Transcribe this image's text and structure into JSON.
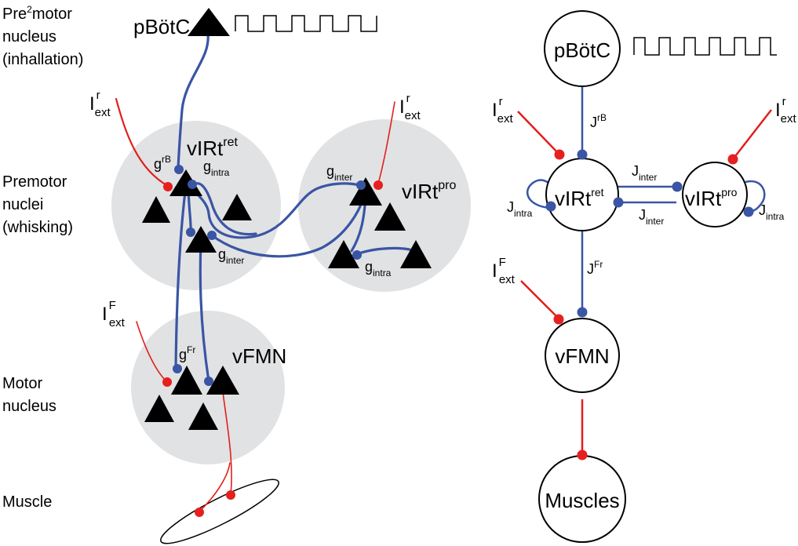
{
  "left_panel": {
    "row_labels": {
      "premotor2_line1": "Pre",
      "premotor2_sup": "2",
      "premotor2_line1_rest": "motor",
      "premotor2_line2": "nucleus",
      "premotor2_line3": "(inhallation)",
      "premotor_line1": "Premotor",
      "premotor_line2": "nuclei",
      "premotor_line3": "(whisking)",
      "motor_line1": "Motor",
      "motor_line2": "nucleus",
      "muscle": "Muscle"
    },
    "nuclei": {
      "pbotc": "pBötC",
      "virt_ret_base": "vIRt",
      "virt_ret_sup": "ret",
      "virt_pro_base": "vIRt",
      "virt_pro_sup": "pro",
      "vfmn": "vFMN"
    },
    "inputs": {
      "ext_r_left_base": "I",
      "ext_r_left_sup": "r",
      "ext_r_left_sub": "ext",
      "ext_r_right_base": "I",
      "ext_r_right_sup": "r",
      "ext_r_right_sub": "ext",
      "ext_f_base": "I",
      "ext_f_sup": "F",
      "ext_f_sub": "ext"
    },
    "conductances": {
      "g_rb_base": "g",
      "g_rb_sup": "rB",
      "g_intra_ret_base": "g",
      "g_intra_ret_sub": "intra",
      "g_inter_ret_base": "g",
      "g_inter_ret_sub": "inter",
      "g_inter_pro_base": "g",
      "g_inter_pro_sub": "inter",
      "g_intra_pro_base": "g",
      "g_intra_pro_sub": "intra",
      "g_fr_base": "g",
      "g_fr_sup": "Fr"
    }
  },
  "right_panel": {
    "nodes": {
      "pbotc": "pBötC",
      "virt_ret_base": "vIRt",
      "virt_ret_sup": "ret",
      "virt_pro_base": "vIRt",
      "virt_pro_sup": "pro",
      "vfmn": "vFMN",
      "muscles": "Muscles"
    },
    "inputs": {
      "ext_r_left_base": "I",
      "ext_r_left_sup": "r",
      "ext_r_left_sub": "ext",
      "ext_r_right_base": "I",
      "ext_r_right_sup": "r",
      "ext_r_right_sub": "ext",
      "ext_f_base": "I",
      "ext_f_sup": "F",
      "ext_f_sub": "ext"
    },
    "couplings": {
      "j_rb_base": "J",
      "j_rb_sup": "rB",
      "j_fr_base": "J",
      "j_fr_sup": "Fr",
      "j_inter_top_base": "J",
      "j_inter_top_sub": "inter",
      "j_inter_bottom_base": "J",
      "j_inter_bottom_sub": "inter",
      "j_intra_left_base": "J",
      "j_intra_left_sub": "intra",
      "j_intra_right_base": "J",
      "j_intra_right_sub": "intra"
    }
  },
  "colors": {
    "inhibitory_blue": "#3a55a4",
    "excitatory_red": "#e0201b",
    "nucleus_gray": "#e1e2e3",
    "neuron_black": "#000000"
  }
}
